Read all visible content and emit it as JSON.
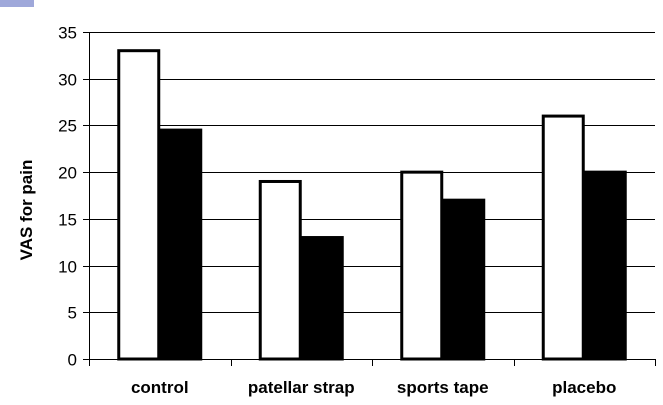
{
  "chart_data": {
    "type": "bar",
    "title": "",
    "xlabel": "",
    "ylabel": "VAS for pain",
    "categories": [
      "control",
      "patellar strap",
      "sports tape",
      "placebo"
    ],
    "series": [
      {
        "values": [
          33,
          19,
          20,
          26
        ],
        "color": "#ffffff"
      },
      {
        "values": [
          24.5,
          13,
          17,
          20
        ],
        "color": "#000000"
      }
    ],
    "ylim": [
      0,
      35
    ],
    "yticks": [
      0,
      5,
      10,
      15,
      20,
      25,
      30,
      35
    ],
    "grid": true,
    "legend": "none"
  },
  "colors": {
    "corner_mark": "#9fa8da"
  }
}
